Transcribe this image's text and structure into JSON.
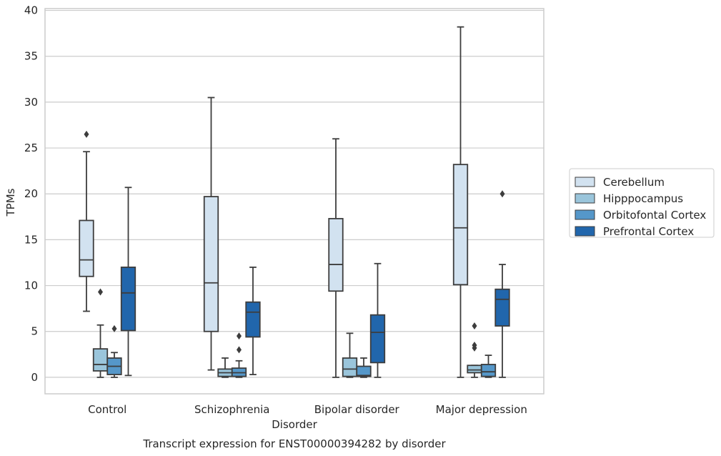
{
  "chart_data": {
    "type": "box",
    "title": "",
    "caption": "Transcript expression for ENST00000394282 by disorder",
    "xlabel": "Disorder",
    "ylabel": "TPMs",
    "ylim": [
      -1.8,
      40.2
    ],
    "yticks": [
      0,
      5,
      10,
      15,
      20,
      25,
      30,
      35,
      40
    ],
    "grid": "horizontal",
    "legend_position": "right",
    "categories": [
      "Control",
      "Schizophrenia",
      "Bipolar disorder",
      "Major depression"
    ],
    "series": [
      {
        "name": "Cerebellum",
        "color": "#d2e2f0",
        "boxes": [
          {
            "whisker_low": 7.2,
            "q1": 11.0,
            "median": 12.8,
            "q3": 17.1,
            "whisker_high": 24.6,
            "outliers": [
              26.5
            ]
          },
          {
            "whisker_low": 0.8,
            "q1": 5.0,
            "median": 10.3,
            "q3": 19.7,
            "whisker_high": 30.5,
            "outliers": []
          },
          {
            "whisker_low": 0.0,
            "q1": 9.4,
            "median": 12.3,
            "q3": 17.3,
            "whisker_high": 26.0,
            "outliers": []
          },
          {
            "whisker_low": 0.0,
            "q1": 10.1,
            "median": 16.3,
            "q3": 23.2,
            "whisker_high": 38.2,
            "outliers": []
          }
        ]
      },
      {
        "name": "Hipppocampus",
        "color": "#9ac5db",
        "boxes": [
          {
            "whisker_low": 0.0,
            "q1": 0.7,
            "median": 1.4,
            "q3": 3.1,
            "whisker_high": 5.7,
            "outliers": [
              9.3
            ]
          },
          {
            "whisker_low": 0.0,
            "q1": 0.1,
            "median": 0.5,
            "q3": 0.9,
            "whisker_high": 2.1,
            "outliers": []
          },
          {
            "whisker_low": 0.0,
            "q1": 0.1,
            "median": 0.9,
            "q3": 2.1,
            "whisker_high": 4.8,
            "outliers": []
          },
          {
            "whisker_low": 0.0,
            "q1": 0.5,
            "median": 0.8,
            "q3": 1.3,
            "whisker_high": 1.3,
            "outliers": [
              3.2,
              3.5,
              5.6
            ]
          }
        ]
      },
      {
        "name": "Orbitofontal Cortex",
        "color": "#5597c9",
        "boxes": [
          {
            "whisker_low": 0.0,
            "q1": 0.3,
            "median": 1.2,
            "q3": 2.1,
            "whisker_high": 2.7,
            "outliers": [
              5.3
            ]
          },
          {
            "whisker_low": 0.0,
            "q1": 0.1,
            "median": 0.5,
            "q3": 1.0,
            "whisker_high": 1.8,
            "outliers": [
              3.0,
              4.5
            ]
          },
          {
            "whisker_low": 0.0,
            "q1": 0.1,
            "median": 0.2,
            "q3": 1.2,
            "whisker_high": 2.1,
            "outliers": []
          },
          {
            "whisker_low": 0.0,
            "q1": 0.1,
            "median": 0.6,
            "q3": 1.4,
            "whisker_high": 2.4,
            "outliers": []
          }
        ]
      },
      {
        "name": "Prefrontal Cortex",
        "color": "#2166ac",
        "boxes": [
          {
            "whisker_low": 0.2,
            "q1": 5.1,
            "median": 9.2,
            "q3": 12.0,
            "whisker_high": 20.7,
            "outliers": []
          },
          {
            "whisker_low": 0.3,
            "q1": 4.4,
            "median": 7.1,
            "q3": 8.2,
            "whisker_high": 12.0,
            "outliers": []
          },
          {
            "whisker_low": 0.0,
            "q1": 1.6,
            "median": 4.9,
            "q3": 6.8,
            "whisker_high": 12.4,
            "outliers": []
          },
          {
            "whisker_low": 0.0,
            "q1": 5.6,
            "median": 8.5,
            "q3": 9.6,
            "whisker_high": 12.3,
            "outliers": [
              20.0
            ]
          }
        ]
      }
    ]
  },
  "colors": {
    "grid": "#cccccc",
    "frame": "#cccccc",
    "box_edge": "#3d3d3d"
  }
}
